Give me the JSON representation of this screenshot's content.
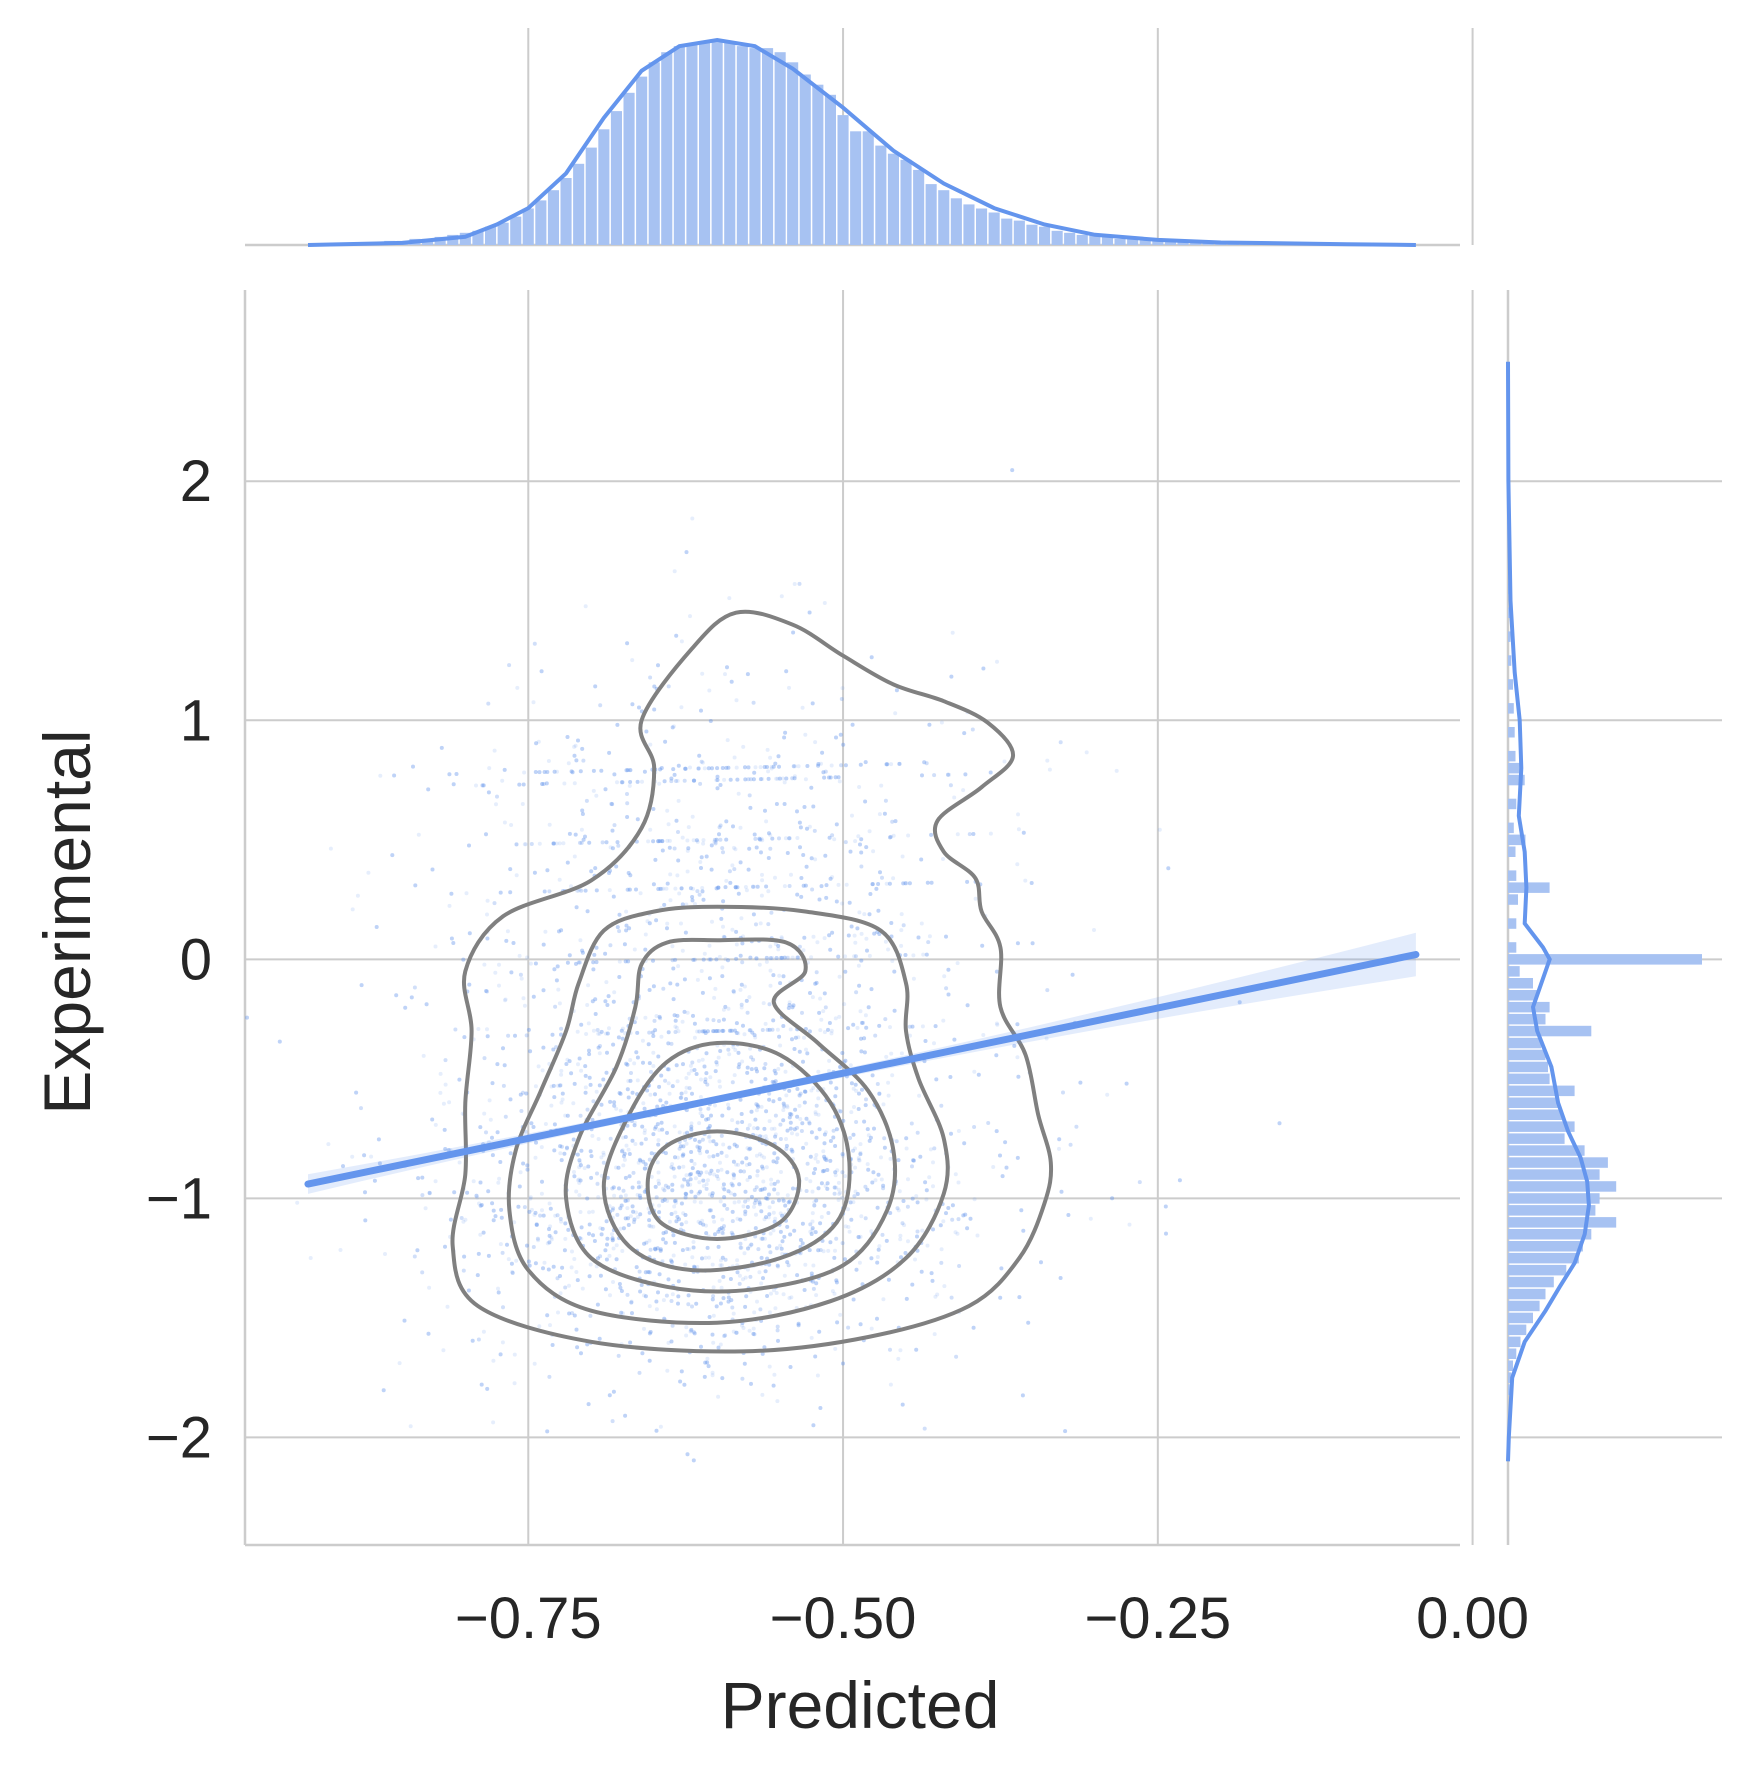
{
  "chart_data": {
    "type": "scatter",
    "subtype": "jointplot",
    "xlabel": "Predicted",
    "ylabel": "Experimental",
    "xlim": [
      -0.975,
      -0.01
    ],
    "ylim": [
      -2.45,
      2.8
    ],
    "x_ticks": [
      -0.75,
      -0.5,
      -0.25,
      0.0
    ],
    "x_tick_labels": [
      "−0.75",
      "−0.50",
      "−0.25",
      "0.00"
    ],
    "y_ticks": [
      -2,
      -1,
      0,
      1,
      2
    ],
    "y_tick_labels": [
      "−2",
      "−1",
      "0",
      "1",
      "2"
    ],
    "grid": true,
    "colors": {
      "primary": "#6495ed",
      "histogram": "#a7c2f2",
      "contour": "#808080",
      "grid": "#cccccc",
      "text": "#262626"
    },
    "regression_line": {
      "x": [
        -0.925,
        -0.045
      ],
      "y": [
        -0.94,
        0.02
      ]
    },
    "scatter_distribution": {
      "x_mean": -0.6,
      "x_sd": 0.1,
      "y_cluster": {
        "mean": -0.95,
        "sd": 0.38,
        "weight": 0.72
      },
      "y_spread": {
        "mean": 0.2,
        "sd": 0.55,
        "weight": 0.28
      },
      "y_bands": [
        0.0,
        -0.3,
        0.3,
        0.5,
        0.75,
        0.8
      ]
    },
    "contours": [
      {
        "level": 1,
        "points": [
          [
            -0.585,
            1.45
          ],
          [
            -0.54,
            1.4
          ],
          [
            -0.5,
            1.27
          ],
          [
            -0.46,
            1.15
          ],
          [
            -0.42,
            1.08
          ],
          [
            -0.385,
            0.99
          ],
          [
            -0.365,
            0.85
          ],
          [
            -0.39,
            0.72
          ],
          [
            -0.425,
            0.58
          ],
          [
            -0.42,
            0.45
          ],
          [
            -0.395,
            0.34
          ],
          [
            -0.39,
            0.2
          ],
          [
            -0.375,
            0.05
          ],
          [
            -0.375,
            -0.2
          ],
          [
            -0.355,
            -0.4
          ],
          [
            -0.345,
            -0.65
          ],
          [
            -0.335,
            -0.85
          ],
          [
            -0.34,
            -1.02
          ],
          [
            -0.36,
            -1.25
          ],
          [
            -0.4,
            -1.45
          ],
          [
            -0.48,
            -1.58
          ],
          [
            -0.58,
            -1.64
          ],
          [
            -0.7,
            -1.6
          ],
          [
            -0.79,
            -1.45
          ],
          [
            -0.81,
            -1.2
          ],
          [
            -0.8,
            -0.9
          ],
          [
            -0.8,
            -0.6
          ],
          [
            -0.795,
            -0.3
          ],
          [
            -0.8,
            -0.05
          ],
          [
            -0.77,
            0.18
          ],
          [
            -0.7,
            0.33
          ],
          [
            -0.66,
            0.55
          ],
          [
            -0.65,
            0.8
          ],
          [
            -0.66,
            1.0
          ],
          [
            -0.62,
            1.3
          ],
          [
            -0.585,
            1.45
          ]
        ]
      },
      {
        "level": 2,
        "points": [
          [
            -0.6,
            0.22
          ],
          [
            -0.53,
            0.2
          ],
          [
            -0.47,
            0.12
          ],
          [
            -0.45,
            -0.1
          ],
          [
            -0.45,
            -0.3
          ],
          [
            -0.44,
            -0.5
          ],
          [
            -0.42,
            -0.75
          ],
          [
            -0.42,
            -0.98
          ],
          [
            -0.45,
            -1.25
          ],
          [
            -0.51,
            -1.43
          ],
          [
            -0.6,
            -1.52
          ],
          [
            -0.7,
            -1.47
          ],
          [
            -0.75,
            -1.3
          ],
          [
            -0.765,
            -1.05
          ],
          [
            -0.76,
            -0.8
          ],
          [
            -0.74,
            -0.55
          ],
          [
            -0.72,
            -0.3
          ],
          [
            -0.71,
            -0.1
          ],
          [
            -0.69,
            0.12
          ],
          [
            -0.65,
            0.2
          ],
          [
            -0.6,
            0.22
          ]
        ]
      },
      {
        "level": 3,
        "points": [
          [
            -0.6,
            0.08
          ],
          [
            -0.545,
            0.07
          ],
          [
            -0.53,
            -0.05
          ],
          [
            -0.555,
            -0.18
          ],
          [
            -0.52,
            -0.35
          ],
          [
            -0.48,
            -0.55
          ],
          [
            -0.46,
            -0.8
          ],
          [
            -0.465,
            -1.05
          ],
          [
            -0.5,
            -1.28
          ],
          [
            -0.57,
            -1.38
          ],
          [
            -0.64,
            -1.37
          ],
          [
            -0.7,
            -1.25
          ],
          [
            -0.72,
            -1.0
          ],
          [
            -0.71,
            -0.75
          ],
          [
            -0.68,
            -0.45
          ],
          [
            -0.665,
            -0.2
          ],
          [
            -0.66,
            -0.02
          ],
          [
            -0.64,
            0.07
          ],
          [
            -0.6,
            0.08
          ]
        ]
      },
      {
        "level": 4,
        "points": [
          [
            -0.6,
            -0.35
          ],
          [
            -0.55,
            -0.4
          ],
          [
            -0.51,
            -0.6
          ],
          [
            -0.495,
            -0.85
          ],
          [
            -0.505,
            -1.1
          ],
          [
            -0.55,
            -1.25
          ],
          [
            -0.62,
            -1.3
          ],
          [
            -0.67,
            -1.2
          ],
          [
            -0.69,
            -0.95
          ],
          [
            -0.67,
            -0.65
          ],
          [
            -0.64,
            -0.43
          ],
          [
            -0.6,
            -0.35
          ]
        ]
      },
      {
        "level": 5,
        "points": [
          [
            -0.6,
            -0.72
          ],
          [
            -0.555,
            -0.78
          ],
          [
            -0.535,
            -0.92
          ],
          [
            -0.55,
            -1.1
          ],
          [
            -0.6,
            -1.17
          ],
          [
            -0.645,
            -1.1
          ],
          [
            -0.655,
            -0.92
          ],
          [
            -0.64,
            -0.78
          ],
          [
            -0.6,
            -0.72
          ]
        ]
      }
    ],
    "marginal_x": {
      "kde": [
        [
          -0.925,
          0.0
        ],
        [
          -0.85,
          0.01
        ],
        [
          -0.8,
          0.04
        ],
        [
          -0.775,
          0.1
        ],
        [
          -0.75,
          0.18
        ],
        [
          -0.72,
          0.35
        ],
        [
          -0.69,
          0.62
        ],
        [
          -0.66,
          0.85
        ],
        [
          -0.63,
          0.97
        ],
        [
          -0.6,
          1.0
        ],
        [
          -0.57,
          0.97
        ],
        [
          -0.54,
          0.86
        ],
        [
          -0.5,
          0.67
        ],
        [
          -0.46,
          0.46
        ],
        [
          -0.42,
          0.3
        ],
        [
          -0.38,
          0.18
        ],
        [
          -0.34,
          0.1
        ],
        [
          -0.3,
          0.05
        ],
        [
          -0.25,
          0.025
        ],
        [
          -0.2,
          0.012
        ],
        [
          -0.1,
          0.004
        ],
        [
          -0.045,
          0.0
        ]
      ],
      "histogram_bars": [
        [
          -0.88,
          0.01
        ],
        [
          -0.87,
          0.01
        ],
        [
          -0.86,
          0.02
        ],
        [
          -0.85,
          0.02
        ],
        [
          -0.84,
          0.03
        ],
        [
          -0.83,
          0.03
        ],
        [
          -0.82,
          0.04
        ],
        [
          -0.81,
          0.05
        ],
        [
          -0.8,
          0.06
        ],
        [
          -0.79,
          0.07
        ],
        [
          -0.78,
          0.09
        ],
        [
          -0.77,
          0.11
        ],
        [
          -0.76,
          0.14
        ],
        [
          -0.75,
          0.18
        ],
        [
          -0.74,
          0.22
        ],
        [
          -0.73,
          0.27
        ],
        [
          -0.72,
          0.33
        ],
        [
          -0.71,
          0.4
        ],
        [
          -0.7,
          0.48
        ],
        [
          -0.69,
          0.57
        ],
        [
          -0.68,
          0.66
        ],
        [
          -0.67,
          0.75
        ],
        [
          -0.66,
          0.83
        ],
        [
          -0.65,
          0.9
        ],
        [
          -0.64,
          0.95
        ],
        [
          -0.63,
          0.98
        ],
        [
          -0.62,
          0.99
        ],
        [
          -0.61,
          1.0
        ],
        [
          -0.6,
          1.0
        ],
        [
          -0.59,
          1.0
        ],
        [
          -0.58,
          0.98
        ],
        [
          -0.57,
          0.97
        ],
        [
          -0.56,
          0.97
        ],
        [
          -0.55,
          0.95
        ],
        [
          -0.54,
          0.9
        ],
        [
          -0.53,
          0.84
        ],
        [
          -0.52,
          0.79
        ],
        [
          -0.51,
          0.74
        ],
        [
          -0.5,
          0.64
        ],
        [
          -0.49,
          0.56
        ],
        [
          -0.48,
          0.56
        ],
        [
          -0.47,
          0.49
        ],
        [
          -0.46,
          0.45
        ],
        [
          -0.45,
          0.42
        ],
        [
          -0.44,
          0.37
        ],
        [
          -0.43,
          0.3
        ],
        [
          -0.42,
          0.27
        ],
        [
          -0.41,
          0.23
        ],
        [
          -0.4,
          0.2
        ],
        [
          -0.39,
          0.18
        ],
        [
          -0.38,
          0.16
        ],
        [
          -0.37,
          0.13
        ],
        [
          -0.36,
          0.12
        ],
        [
          -0.35,
          0.1
        ],
        [
          -0.34,
          0.09
        ],
        [
          -0.33,
          0.07
        ],
        [
          -0.32,
          0.06
        ],
        [
          -0.31,
          0.05
        ],
        [
          -0.3,
          0.05
        ],
        [
          -0.29,
          0.04
        ],
        [
          -0.28,
          0.03
        ],
        [
          -0.27,
          0.03
        ],
        [
          -0.26,
          0.03
        ],
        [
          -0.25,
          0.02
        ],
        [
          -0.24,
          0.02
        ],
        [
          -0.23,
          0.02
        ],
        [
          -0.22,
          0.02
        ],
        [
          -0.21,
          0.01
        ],
        [
          -0.2,
          0.01
        ],
        [
          -0.19,
          0.01
        ],
        [
          -0.18,
          0.01
        ],
        [
          -0.17,
          0.01
        ]
      ]
    },
    "marginal_y": {
      "kde": [
        [
          2.5,
          0.0
        ],
        [
          2.0,
          0.005
        ],
        [
          1.5,
          0.03
        ],
        [
          1.2,
          0.08
        ],
        [
          1.0,
          0.14
        ],
        [
          0.8,
          0.16
        ],
        [
          0.6,
          0.13
        ],
        [
          0.45,
          0.2
        ],
        [
          0.3,
          0.22
        ],
        [
          0.15,
          0.2
        ],
        [
          0.05,
          0.42
        ],
        [
          0.0,
          0.5
        ],
        [
          -0.08,
          0.42
        ],
        [
          -0.2,
          0.3
        ],
        [
          -0.3,
          0.35
        ],
        [
          -0.45,
          0.52
        ],
        [
          -0.6,
          0.6
        ],
        [
          -0.72,
          0.72
        ],
        [
          -0.83,
          0.87
        ],
        [
          -0.93,
          0.95
        ],
        [
          -1.03,
          0.97
        ],
        [
          -1.15,
          0.92
        ],
        [
          -1.27,
          0.8
        ],
        [
          -1.37,
          0.62
        ],
        [
          -1.47,
          0.45
        ],
        [
          -1.6,
          0.2
        ],
        [
          -1.75,
          0.05
        ],
        [
          -2.0,
          0.01
        ],
        [
          -2.1,
          0.0
        ]
      ],
      "histogram_bars": [
        [
          1.95,
          0.01
        ],
        [
          1.85,
          0.01
        ],
        [
          1.75,
          0.01
        ],
        [
          1.65,
          0.02
        ],
        [
          1.55,
          0.02
        ],
        [
          1.45,
          0.03
        ],
        [
          1.35,
          0.03
        ],
        [
          1.25,
          0.04
        ],
        [
          1.15,
          0.06
        ],
        [
          1.05,
          0.07
        ],
        [
          0.95,
          0.08
        ],
        [
          0.85,
          0.09
        ],
        [
          0.8,
          0.18
        ],
        [
          0.75,
          0.2
        ],
        [
          0.65,
          0.1
        ],
        [
          0.55,
          0.07
        ],
        [
          0.5,
          0.21
        ],
        [
          0.45,
          0.09
        ],
        [
          0.35,
          0.1
        ],
        [
          0.3,
          0.5
        ],
        [
          0.25,
          0.12
        ],
        [
          0.15,
          0.1
        ],
        [
          0.05,
          0.1
        ],
        [
          0.0,
          2.33
        ],
        [
          -0.05,
          0.14
        ],
        [
          -0.1,
          0.3
        ],
        [
          -0.15,
          0.35
        ],
        [
          -0.2,
          0.5
        ],
        [
          -0.25,
          0.45
        ],
        [
          -0.3,
          1.0
        ],
        [
          -0.35,
          0.4
        ],
        [
          -0.4,
          0.45
        ],
        [
          -0.45,
          0.48
        ],
        [
          -0.5,
          0.5
        ],
        [
          -0.55,
          0.8
        ],
        [
          -0.6,
          0.6
        ],
        [
          -0.65,
          0.65
        ],
        [
          -0.7,
          0.8
        ],
        [
          -0.75,
          0.68
        ],
        [
          -0.8,
          0.92
        ],
        [
          -0.85,
          1.2
        ],
        [
          -0.9,
          1.1
        ],
        [
          -0.95,
          1.3
        ],
        [
          -1.0,
          1.1
        ],
        [
          -1.05,
          1.05
        ],
        [
          -1.1,
          1.3
        ],
        [
          -1.15,
          1.0
        ],
        [
          -1.2,
          0.9
        ],
        [
          -1.25,
          0.85
        ],
        [
          -1.3,
          0.7
        ],
        [
          -1.35,
          0.55
        ],
        [
          -1.4,
          0.45
        ],
        [
          -1.45,
          0.38
        ],
        [
          -1.5,
          0.3
        ],
        [
          -1.55,
          0.22
        ],
        [
          -1.6,
          0.15
        ],
        [
          -1.65,
          0.1
        ],
        [
          -1.7,
          0.06
        ],
        [
          -1.75,
          0.04
        ],
        [
          -1.8,
          0.02
        ]
      ]
    }
  }
}
